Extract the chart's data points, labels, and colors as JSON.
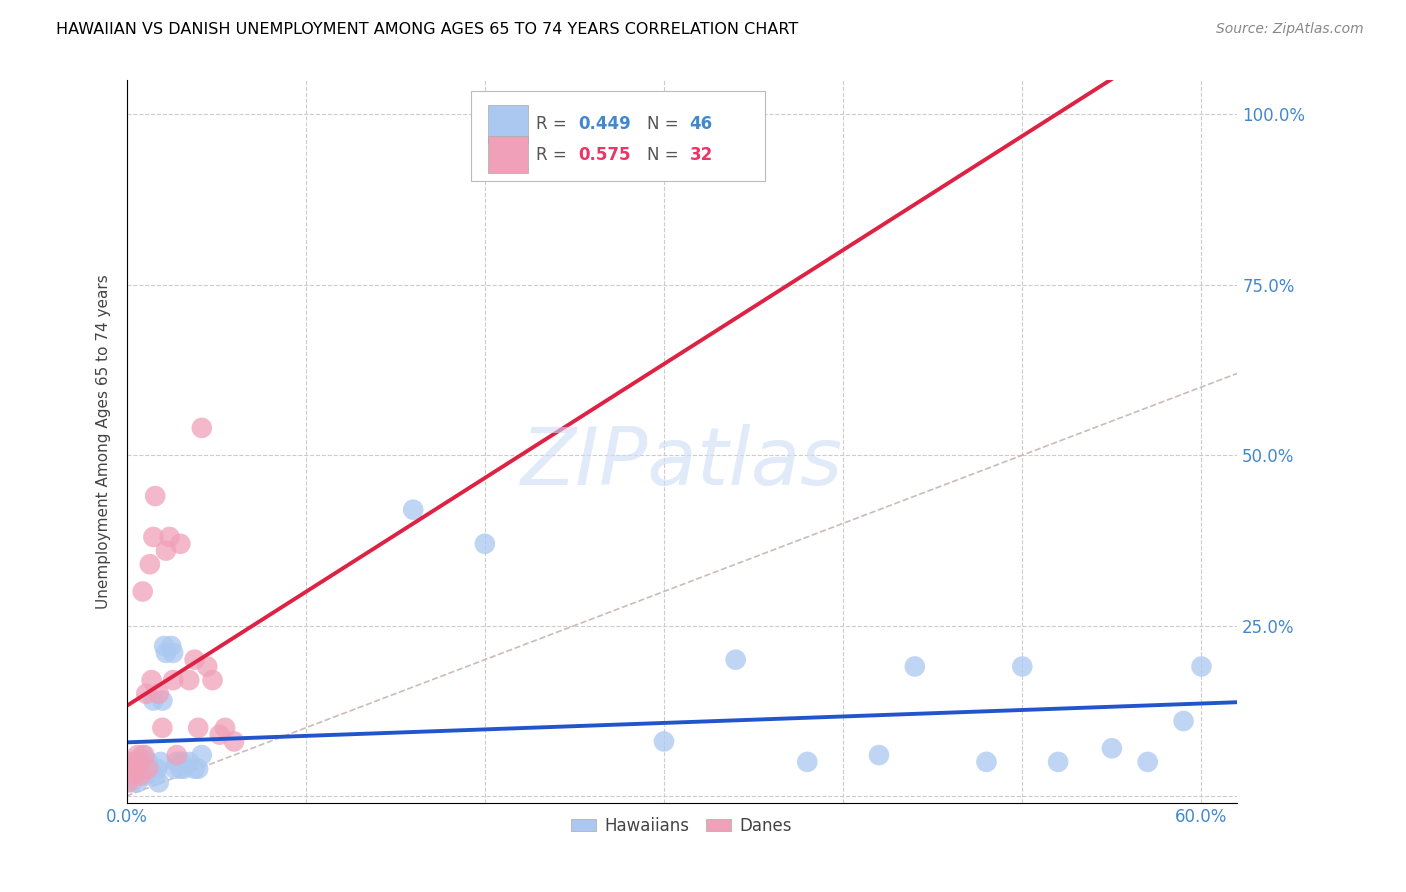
{
  "title": "HAWAIIAN VS DANISH UNEMPLOYMENT AMONG AGES 65 TO 74 YEARS CORRELATION CHART",
  "source": "Source: ZipAtlas.com",
  "ylabel": "Unemployment Among Ages 65 to 74 years",
  "xlim": [
    0.0,
    0.62
  ],
  "ylim": [
    -0.01,
    1.05
  ],
  "watermark": "ZIPatlas",
  "legend_hawaiian_r": "0.449",
  "legend_hawaiian_n": "46",
  "legend_danish_r": "0.575",
  "legend_danish_n": "32",
  "hawaiian_color": "#aac8f0",
  "danish_color": "#f0a0b8",
  "hawaiian_line_color": "#2255cc",
  "danish_line_color": "#dd2244",
  "diagonal_color": "#ccbbbb",
  "title_color": "#000000",
  "source_color": "#888888",
  "axis_label_color": "#444444",
  "tick_color": "#4488cc",
  "grid_color": "#cccccc",
  "x_ticks": [
    0.0,
    0.6
  ],
  "x_tick_labels": [
    "0.0%",
    "60.0%"
  ],
  "y_ticks": [
    0.0,
    0.25,
    0.5,
    0.75,
    1.0
  ],
  "y_tick_labels_right": [
    "",
    "25.0%",
    "50.0%",
    "75.0%",
    "100.0%"
  ],
  "hawaiians_x": [
    0.001,
    0.002,
    0.003,
    0.004,
    0.005,
    0.006,
    0.007,
    0.008,
    0.009,
    0.01,
    0.011,
    0.012,
    0.013,
    0.015,
    0.016,
    0.017,
    0.018,
    0.019,
    0.02,
    0.021,
    0.022,
    0.025,
    0.026,
    0.027,
    0.028,
    0.03,
    0.031,
    0.032,
    0.035,
    0.038,
    0.04,
    0.042,
    0.16,
    0.2,
    0.3,
    0.34,
    0.38,
    0.42,
    0.44,
    0.48,
    0.5,
    0.52,
    0.55,
    0.57,
    0.59,
    0.6
  ],
  "hawaiians_y": [
    0.03,
    0.04,
    0.02,
    0.05,
    0.03,
    0.02,
    0.04,
    0.03,
    0.06,
    0.04,
    0.03,
    0.05,
    0.04,
    0.14,
    0.03,
    0.04,
    0.02,
    0.05,
    0.14,
    0.22,
    0.21,
    0.22,
    0.21,
    0.04,
    0.05,
    0.04,
    0.05,
    0.04,
    0.05,
    0.04,
    0.04,
    0.06,
    0.42,
    0.37,
    0.08,
    0.2,
    0.05,
    0.06,
    0.19,
    0.05,
    0.19,
    0.05,
    0.07,
    0.05,
    0.11,
    0.19
  ],
  "danes_x": [
    0.001,
    0.002,
    0.003,
    0.004,
    0.005,
    0.006,
    0.007,
    0.008,
    0.009,
    0.01,
    0.011,
    0.012,
    0.013,
    0.014,
    0.015,
    0.016,
    0.018,
    0.02,
    0.022,
    0.024,
    0.026,
    0.028,
    0.03,
    0.035,
    0.038,
    0.04,
    0.042,
    0.045,
    0.048,
    0.052,
    0.055,
    0.06
  ],
  "danes_y": [
    0.02,
    0.04,
    0.05,
    0.03,
    0.04,
    0.06,
    0.05,
    0.03,
    0.3,
    0.06,
    0.15,
    0.04,
    0.34,
    0.17,
    0.38,
    0.44,
    0.15,
    0.1,
    0.36,
    0.38,
    0.17,
    0.06,
    0.37,
    0.17,
    0.2,
    0.1,
    0.54,
    0.19,
    0.17,
    0.09,
    0.1,
    0.08
  ]
}
